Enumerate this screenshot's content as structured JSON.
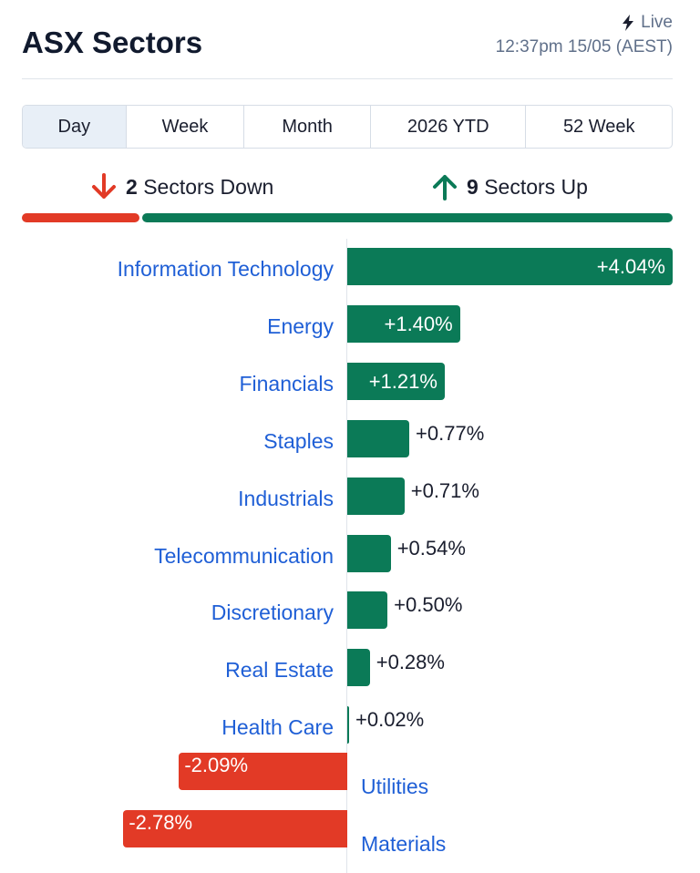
{
  "header": {
    "title": "ASX Sectors",
    "live_label": "Live",
    "timestamp": "12:37pm 15/05 (AEST)"
  },
  "tabs": [
    {
      "label": "Day",
      "active": true
    },
    {
      "label": "Week",
      "active": false
    },
    {
      "label": "Month",
      "active": false
    },
    {
      "label": "2026 YTD",
      "active": false
    },
    {
      "label": "52 Week",
      "active": false
    }
  ],
  "summary": {
    "down_count": "2",
    "down_text": "Sectors Down",
    "up_count": "9",
    "up_text": "Sectors Up",
    "down_ratio": 0.1818,
    "up_ratio": 0.8182
  },
  "colors": {
    "up": "#0b7a57",
    "down": "#e23a26",
    "label": "#1f5fd6"
  },
  "icons": {
    "live": "lightning-icon",
    "down": "arrow-down-icon",
    "up": "arrow-up-icon"
  },
  "chart_data": {
    "type": "bar",
    "orientation": "horizontal",
    "title": "",
    "xlabel": "",
    "ylabel": "",
    "categories": [
      "Information Technology",
      "Energy",
      "Financials",
      "Staples",
      "Industrials",
      "Telecommunication",
      "Discretionary",
      "Real Estate",
      "Health Care",
      "Utilities",
      "Materials"
    ],
    "values": [
      4.04,
      1.4,
      1.21,
      0.77,
      0.71,
      0.54,
      0.5,
      0.28,
      0.02,
      -2.09,
      -2.78
    ],
    "value_labels": [
      "+4.04%",
      "+1.40%",
      "+1.21%",
      "+0.77%",
      "+0.71%",
      "+0.54%",
      "+0.50%",
      "+0.28%",
      "+0.02%",
      "-2.09%",
      "-2.78%"
    ],
    "grid": false,
    "legend": "none"
  }
}
